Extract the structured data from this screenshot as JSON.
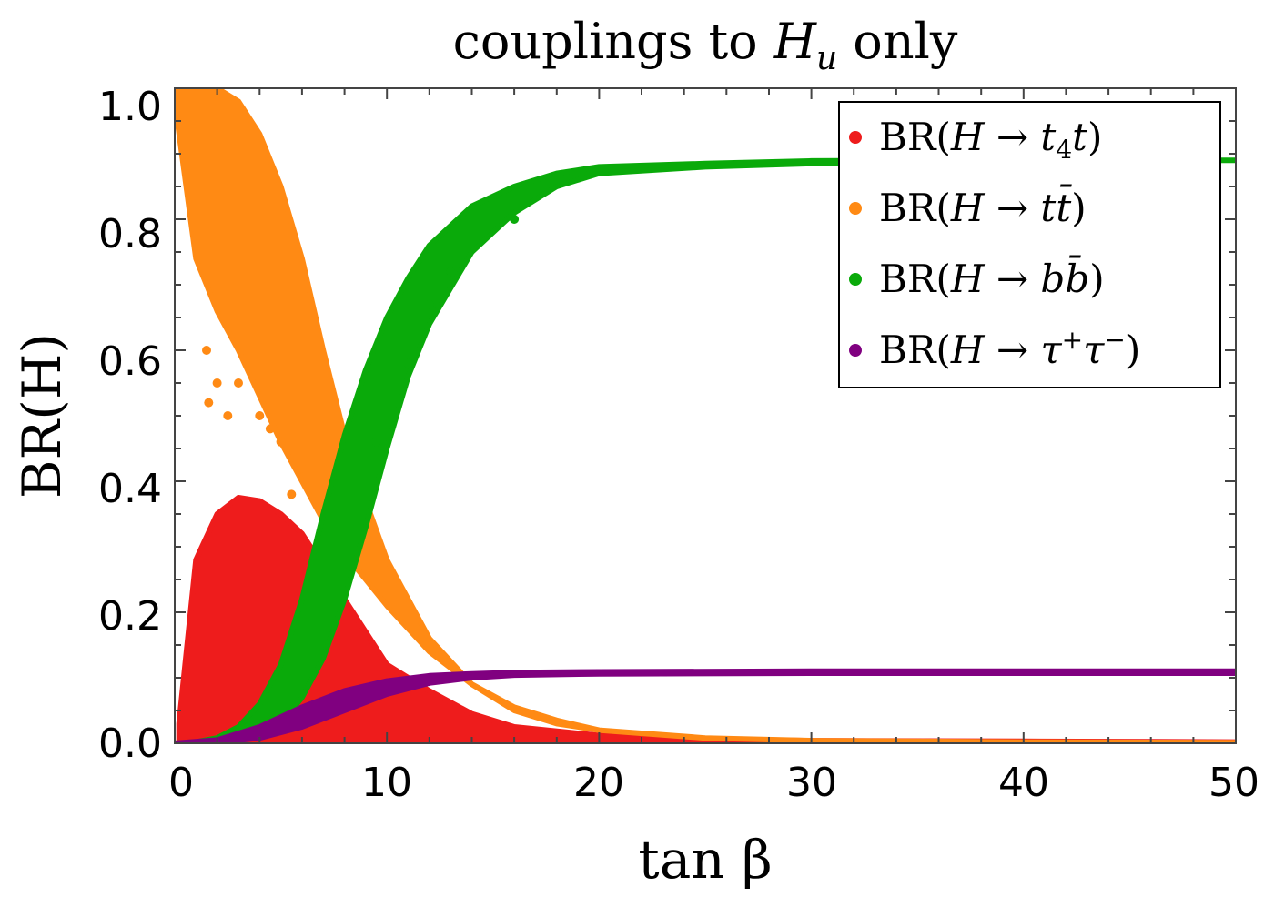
{
  "chart_data": {
    "type": "scatter",
    "title": "couplings to H_u only",
    "title_parts": {
      "prefix": "couplings to ",
      "symbol": "H",
      "subscript": "u",
      "suffix": " only"
    },
    "xlabel": "tan β",
    "ylabel": "BR(H)",
    "xlim": [
      0,
      50
    ],
    "ylim": [
      0,
      1.0
    ],
    "x_ticks": [
      "0",
      "10",
      "20",
      "30",
      "40",
      "50"
    ],
    "y_ticks": [
      "0.0",
      "0.2",
      "0.4",
      "0.6",
      "0.8",
      "1.0"
    ],
    "grid": false,
    "legend_position": "top-right",
    "series": [
      {
        "name": "BR(H → t4 t)",
        "color": "#ee1c1c",
        "label_parts": {
          "pre": "BR(",
          "H": "H",
          "arrow": " → ",
          "a": "t",
          "a_sub": "4",
          "b": "t",
          "post": ")"
        },
        "band_upper": [
          [
            0.2,
            0.03
          ],
          [
            1,
            0.28
          ],
          [
            2,
            0.35
          ],
          [
            3,
            0.375
          ],
          [
            4,
            0.37
          ],
          [
            5,
            0.35
          ],
          [
            6,
            0.32
          ],
          [
            7,
            0.27
          ],
          [
            8,
            0.22
          ],
          [
            9,
            0.17
          ],
          [
            10,
            0.12
          ],
          [
            12,
            0.08
          ],
          [
            14,
            0.045
          ],
          [
            16,
            0.025
          ],
          [
            20,
            0.012
          ],
          [
            25,
            0.007
          ],
          [
            30,
            0.004
          ],
          [
            40,
            0.003
          ],
          [
            50,
            0.002
          ]
        ],
        "band_lower": [
          [
            0.2,
            0.0
          ],
          [
            50,
            0.0
          ]
        ]
      },
      {
        "name": "BR(H → t t̄)",
        "color": "#ff8a14",
        "label_parts": {
          "pre": "BR(",
          "H": "H",
          "arrow": " → ",
          "a": "t",
          "b": "t̄",
          "post": ")"
        },
        "band_upper": [
          [
            0,
            1.0
          ],
          [
            1,
            1.0
          ],
          [
            2,
            1.0
          ],
          [
            3,
            0.98
          ],
          [
            4,
            0.93
          ],
          [
            5,
            0.85
          ],
          [
            6,
            0.74
          ],
          [
            7,
            0.6
          ],
          [
            8,
            0.47
          ],
          [
            9,
            0.37
          ],
          [
            10,
            0.28
          ],
          [
            12,
            0.16
          ],
          [
            14,
            0.09
          ],
          [
            16,
            0.05
          ],
          [
            18,
            0.03
          ],
          [
            20,
            0.02
          ],
          [
            25,
            0.008
          ],
          [
            30,
            0.004
          ],
          [
            40,
            0.002
          ],
          [
            50,
            0.001
          ]
        ],
        "band_lower": [
          [
            0,
            0.98
          ],
          [
            1,
            0.74
          ],
          [
            2,
            0.66
          ],
          [
            3,
            0.6
          ],
          [
            4,
            0.53
          ],
          [
            5,
            0.46
          ],
          [
            6,
            0.4
          ],
          [
            7,
            0.34
          ],
          [
            8,
            0.29
          ],
          [
            9,
            0.25
          ],
          [
            10,
            0.21
          ],
          [
            12,
            0.14
          ],
          [
            14,
            0.09
          ],
          [
            16,
            0.055
          ],
          [
            18,
            0.035
          ],
          [
            20,
            0.02
          ],
          [
            25,
            0.008
          ],
          [
            30,
            0.004
          ],
          [
            40,
            0.002
          ],
          [
            50,
            0.001
          ]
        ],
        "outliers": [
          [
            1.5,
            0.6
          ],
          [
            2,
            0.55
          ],
          [
            2.5,
            0.5
          ],
          [
            3,
            0.55
          ],
          [
            4,
            0.5
          ],
          [
            5,
            0.46
          ],
          [
            5.5,
            0.38
          ],
          [
            6,
            0.42
          ],
          [
            4.5,
            0.48
          ],
          [
            1.6,
            0.52
          ]
        ]
      },
      {
        "name": "BR(H → b b̄)",
        "color": "#0aaa0a",
        "label_parts": {
          "pre": "BR(",
          "H": "H",
          "arrow": " → ",
          "a": "b",
          "b": "b̄",
          "post": ")"
        },
        "band_upper": [
          [
            0,
            0.0
          ],
          [
            1,
            0.002
          ],
          [
            2,
            0.008
          ],
          [
            3,
            0.025
          ],
          [
            4,
            0.06
          ],
          [
            5,
            0.12
          ],
          [
            6,
            0.22
          ],
          [
            7,
            0.35
          ],
          [
            8,
            0.47
          ],
          [
            9,
            0.57
          ],
          [
            10,
            0.65
          ],
          [
            11,
            0.71
          ],
          [
            12,
            0.76
          ],
          [
            14,
            0.82
          ],
          [
            16,
            0.85
          ],
          [
            18,
            0.87
          ],
          [
            20,
            0.88
          ],
          [
            25,
            0.885
          ],
          [
            30,
            0.889
          ],
          [
            40,
            0.89
          ],
          [
            50,
            0.89
          ]
        ],
        "band_lower": [
          [
            0,
            0.0
          ],
          [
            2,
            0.001
          ],
          [
            3,
            0.005
          ],
          [
            4,
            0.015
          ],
          [
            5,
            0.03
          ],
          [
            6,
            0.07
          ],
          [
            7,
            0.13
          ],
          [
            8,
            0.22
          ],
          [
            9,
            0.33
          ],
          [
            10,
            0.45
          ],
          [
            11,
            0.56
          ],
          [
            12,
            0.64
          ],
          [
            14,
            0.75
          ],
          [
            16,
            0.81
          ],
          [
            18,
            0.85
          ],
          [
            20,
            0.87
          ],
          [
            25,
            0.88
          ],
          [
            30,
            0.885
          ],
          [
            40,
            0.89
          ],
          [
            50,
            0.89
          ]
        ],
        "outliers": [
          [
            9.5,
            0.46
          ],
          [
            11,
            0.58
          ],
          [
            12,
            0.67
          ],
          [
            13,
            0.72
          ],
          [
            16,
            0.8
          ]
        ]
      },
      {
        "name": "BR(H → τ⁺τ⁻)",
        "color": "#800080",
        "label_parts": {
          "pre": "BR(",
          "H": "H",
          "arrow": " → ",
          "a": "τ",
          "a_sup": "+",
          "b": "τ",
          "b_sup": "−",
          "post": ")"
        },
        "band_upper": [
          [
            0,
            0.0
          ],
          [
            2,
            0.005
          ],
          [
            4,
            0.025
          ],
          [
            6,
            0.055
          ],
          [
            8,
            0.08
          ],
          [
            10,
            0.095
          ],
          [
            12,
            0.103
          ],
          [
            14,
            0.106
          ],
          [
            16,
            0.108
          ],
          [
            20,
            0.109
          ],
          [
            30,
            0.11
          ],
          [
            40,
            0.11
          ],
          [
            50,
            0.11
          ]
        ],
        "band_lower": [
          [
            0,
            0.0
          ],
          [
            2,
            0.001
          ],
          [
            4,
            0.008
          ],
          [
            6,
            0.025
          ],
          [
            8,
            0.05
          ],
          [
            10,
            0.075
          ],
          [
            12,
            0.092
          ],
          [
            14,
            0.1
          ],
          [
            16,
            0.104
          ],
          [
            20,
            0.106
          ],
          [
            30,
            0.107
          ],
          [
            40,
            0.107
          ],
          [
            50,
            0.107
          ]
        ]
      }
    ]
  }
}
